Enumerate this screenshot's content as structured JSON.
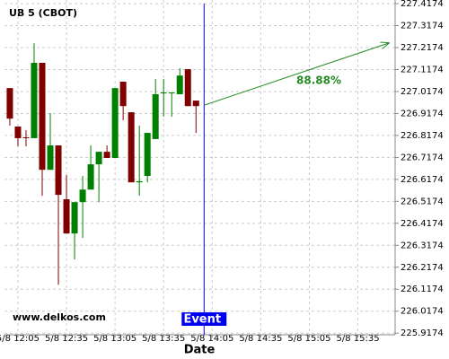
{
  "chart_data": {
    "type": "candlestick",
    "title": "UB 5 (CBOT)",
    "x_label": "Date",
    "watermark": "www.delkos.com",
    "x": [
      720,
      725,
      730,
      735,
      740,
      745,
      750,
      755,
      760,
      765,
      770,
      775,
      780,
      785,
      790,
      795,
      800,
      805,
      810,
      815,
      820,
      825,
      830,
      835
    ],
    "open": [
      227.033,
      226.858,
      226.809,
      226.805,
      227.148,
      226.661,
      226.772,
      226.527,
      226.371,
      226.514,
      226.571,
      226.686,
      226.743,
      226.715,
      227.062,
      226.923,
      226.604,
      226.633,
      226.801,
      227.009,
      227.009,
      227.005,
      227.119,
      226.976
    ],
    "high": [
      227.033,
      226.858,
      226.841,
      227.237,
      227.148,
      226.919,
      226.772,
      226.637,
      226.514,
      226.633,
      226.772,
      226.743,
      226.772,
      227.033,
      227.062,
      226.923,
      226.862,
      226.829,
      227.074,
      227.074,
      227.013,
      227.123,
      227.119,
      226.976
    ],
    "low": [
      226.862,
      226.768,
      226.768,
      226.805,
      226.543,
      226.661,
      226.138,
      226.371,
      226.253,
      226.351,
      226.571,
      226.514,
      226.715,
      226.715,
      226.886,
      226.604,
      226.543,
      226.604,
      226.801,
      226.903,
      226.903,
      227.005,
      226.951,
      226.829
    ],
    "close": [
      226.894,
      226.805,
      226.805,
      227.148,
      226.661,
      226.772,
      226.547,
      226.371,
      226.514,
      226.571,
      226.686,
      226.743,
      226.715,
      227.033,
      226.951,
      226.604,
      226.609,
      226.829,
      227.005,
      227.013,
      227.013,
      227.09,
      226.951,
      226.951
    ],
    "up_color": "#008000",
    "down_color": "#800000",
    "xlim": [
      716.7,
      958
    ],
    "ylim": [
      225.91,
      227.434
    ],
    "xticks": [
      {
        "value": 725,
        "label": "5/8 12:05"
      },
      {
        "value": 755,
        "label": "5/8 12:35"
      },
      {
        "value": 785,
        "label": "5/8 13:05"
      },
      {
        "value": 815,
        "label": "5/8 13:35"
      },
      {
        "value": 845,
        "label": "5/8 14:05"
      },
      {
        "value": 875,
        "label": "5/8 14:35"
      },
      {
        "value": 905,
        "label": "5/8 15:05"
      },
      {
        "value": 935,
        "label": "5/8 15:35"
      }
    ],
    "yticks": [
      225.9174,
      226.0174,
      226.1174,
      226.2174,
      226.3174,
      226.4174,
      226.5174,
      226.6174,
      226.7174,
      226.8174,
      226.9174,
      227.0174,
      227.1174,
      227.2174,
      227.3174,
      227.4174
    ],
    "grid": true,
    "event": {
      "x": 840,
      "label": "Event",
      "color": "#0000ee"
    },
    "arrow": {
      "x": [
        840,
        954
      ],
      "y": [
        226.955,
        227.238
      ],
      "label": "88.88%",
      "color": "#228b22"
    }
  }
}
